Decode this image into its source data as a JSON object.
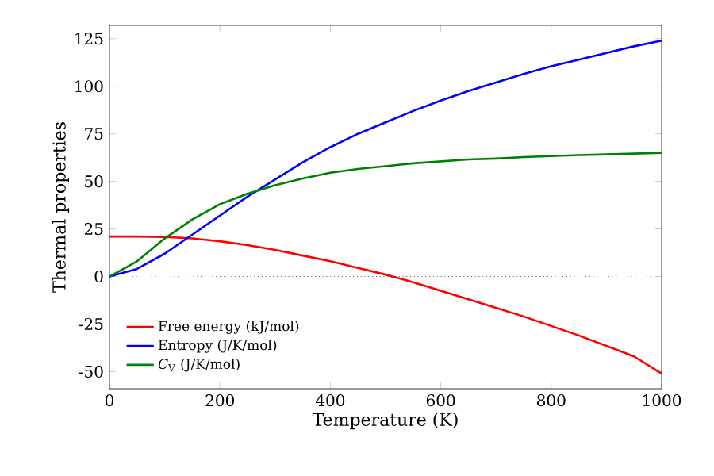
{
  "chart_data": {
    "type": "line",
    "xlabel": "Temperature (K)",
    "ylabel": "Thermal properties",
    "x": [
      0,
      50,
      100,
      150,
      200,
      250,
      300,
      350,
      400,
      450,
      500,
      550,
      600,
      650,
      700,
      750,
      800,
      850,
      900,
      950,
      1000
    ],
    "series": [
      {
        "name": "Free energy (kJ/mol)",
        "color": "#ff0000",
        "values": [
          21,
          21,
          20.8,
          20,
          18.5,
          16.5,
          14,
          11,
          8,
          4.5,
          1,
          -3,
          -7.5,
          -12,
          -16.5,
          -21,
          -26,
          -31,
          -36.5,
          -42,
          -51
        ]
      },
      {
        "name": "Entropy (J/K/mol)",
        "color": "#0000ff",
        "values": [
          0,
          4,
          12,
          22,
          32,
          42,
          51,
          60,
          68,
          75,
          81,
          87,
          92.5,
          97.5,
          102,
          106.5,
          110.5,
          114,
          117.5,
          121,
          124
        ]
      },
      {
        "name": "*C*$_{V}$ (J/K/mol)",
        "color": "#008000",
        "values": [
          0,
          8,
          20,
          30,
          38,
          43.5,
          48,
          51.5,
          54.5,
          56.5,
          58,
          59.5,
          60.5,
          61.5,
          62,
          62.8,
          63.3,
          63.8,
          64.2,
          64.6,
          65
        ]
      }
    ],
    "xlim": [
      0,
      1000
    ],
    "xticks": [
      0,
      200,
      400,
      600,
      800,
      1000
    ],
    "ylim": [
      -59,
      132
    ],
    "yticks": [
      -50,
      -25,
      0,
      25,
      50,
      75,
      100,
      125
    ],
    "ref_lines": [
      {
        "axis": "y",
        "value": 0,
        "color": "#000000",
        "line_style": "dotted"
      }
    ],
    "legend": "bottom left",
    "grid": false,
    "marker": "none",
    "line_style": "solid"
  }
}
